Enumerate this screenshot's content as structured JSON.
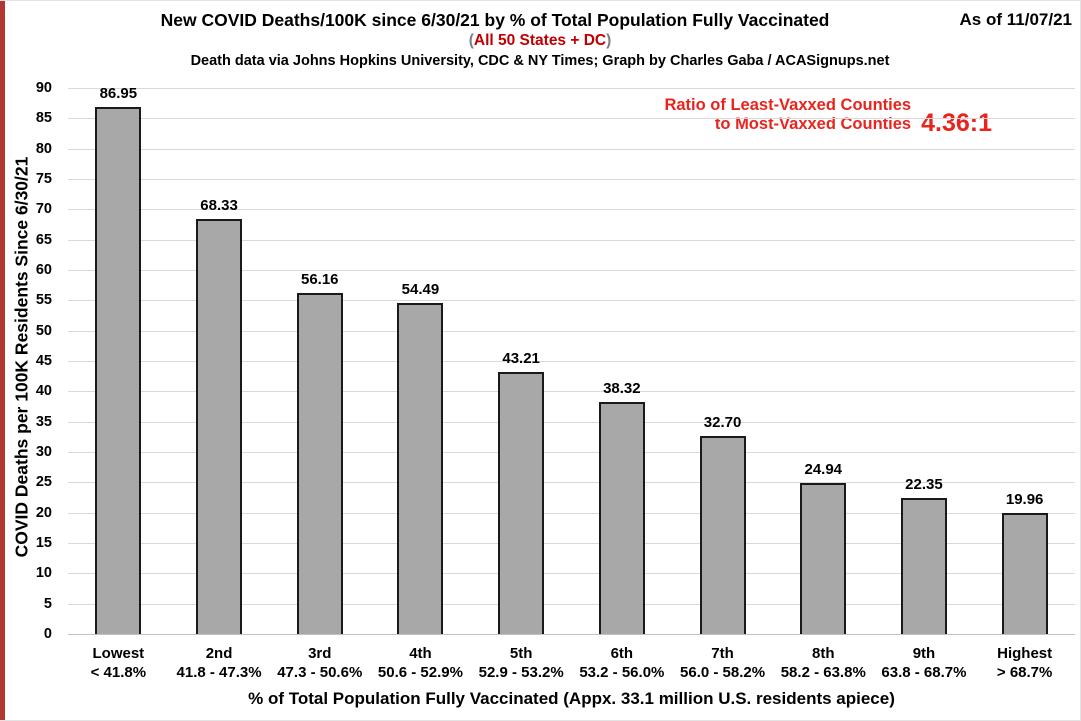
{
  "header": {
    "as_of": "As of 11/07/21",
    "subtitle_open": "(",
    "subtitle": "All 50 States + DC",
    "subtitle_close": ")",
    "credit": "Death data via Johns Hopkins University, CDC & NY Times; Graph by Charles Gaba / ACASignups.net"
  },
  "annotation": {
    "line1": "Ratio of Least-Vaxxed Counties",
    "line2": "to Most-Vaxxed Counties",
    "value": "4.36:1"
  },
  "chart_data": {
    "type": "bar",
    "title": "New COVID Deaths/100K since 6/30/21 by % of Total Population Fully Vaccinated",
    "categories": [
      "Lowest",
      "2nd",
      "3rd",
      "4th",
      "5th",
      "6th",
      "7th",
      "8th",
      "9th",
      "Highest"
    ],
    "category_ranges": [
      "< 41.8%",
      "41.8 - 47.3%",
      "47.3 - 50.6%",
      "50.6 - 52.9%",
      "52.9 - 53.2%",
      "53.2 - 56.0%",
      "56.0 - 58.2%",
      "58.2 - 63.8%",
      "63.8 - 68.7%",
      "> 68.7%"
    ],
    "values": [
      86.95,
      68.33,
      56.16,
      54.49,
      43.21,
      38.32,
      32.7,
      24.94,
      22.35,
      19.96
    ],
    "value_labels": [
      "86.95",
      "68.33",
      "56.16",
      "54.49",
      "43.21",
      "38.32",
      "32.70",
      "24.94",
      "22.35",
      "19.96"
    ],
    "xlabel": "% of Total Population Fully Vaccinated (Appx. 33.1 million U.S. residents apiece)",
    "ylabel": "COVID Deaths per 100K Residents Since 6/30/21",
    "ylim": [
      0,
      90
    ],
    "ytick_step": 5,
    "grid": true,
    "legend": "none"
  },
  "colors": {
    "accent_red": "#e8241c",
    "subtitle_red": "#c00000",
    "stripe_red": "#b03830",
    "grid": "#d9d9d9",
    "bar_fill": "#a8a8a8",
    "bar_border": "#1a1a1a"
  }
}
